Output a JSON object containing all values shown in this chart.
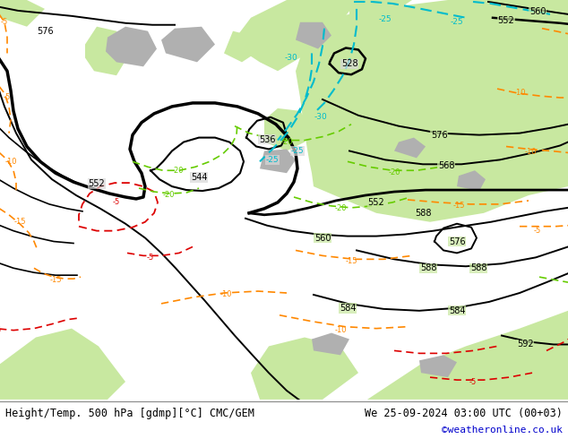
{
  "title_left": "Height/Temp. 500 hPa [gdmp][°C] CMC/GEM",
  "title_right": "We 25-09-2024 03:00 UTC (00+03)",
  "credit": "©weatheronline.co.uk",
  "figsize": [
    6.34,
    4.9
  ],
  "dpi": 100,
  "text_color_main": "#000000",
  "text_color_credit": "#0000cc",
  "bg_sea": "#d8d8d8",
  "bg_land_green": "#c8e8a0",
  "bg_land_gray": "#b0b0b0",
  "col_black": "#000000",
  "col_orange": "#ff8800",
  "col_red": "#dd0000",
  "col_green": "#66cc00",
  "col_cyan": "#00bbcc"
}
